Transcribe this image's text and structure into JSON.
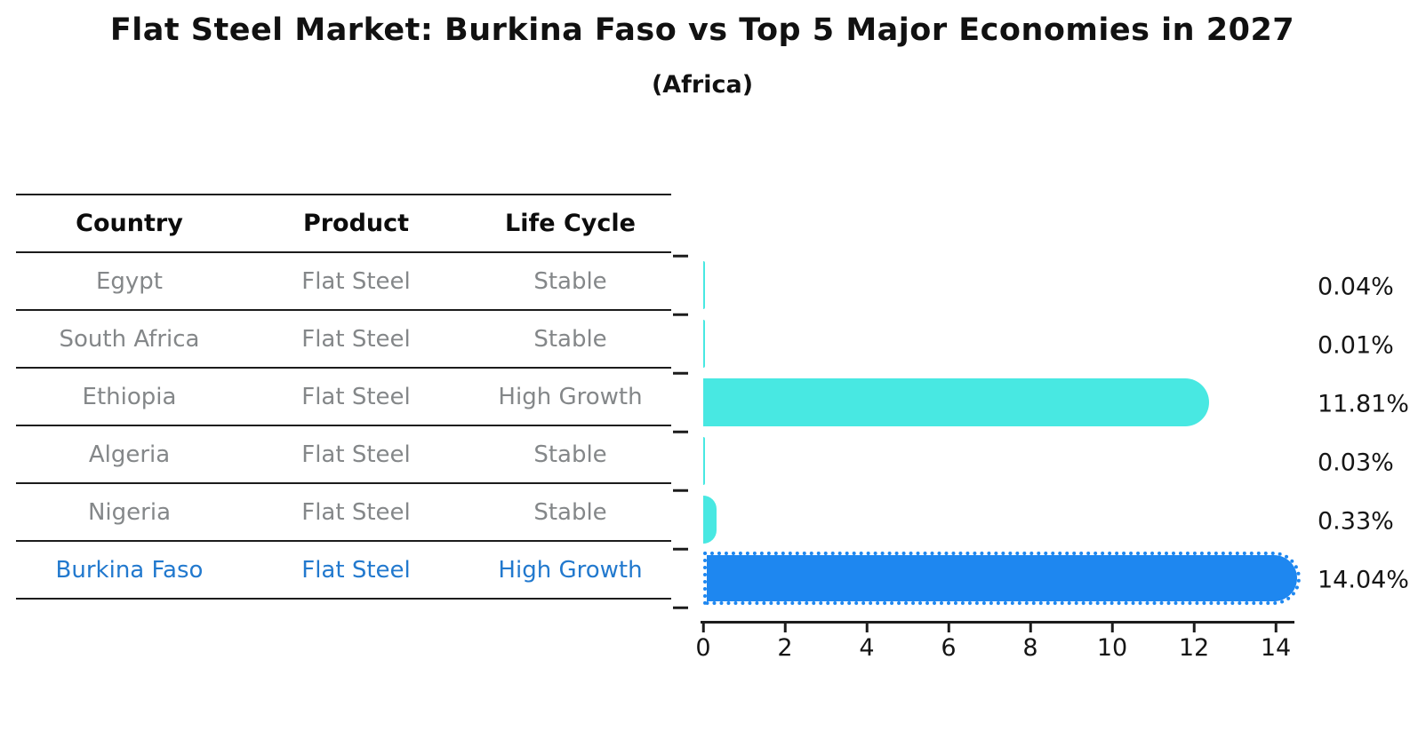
{
  "table": {
    "headers": [
      "Country",
      "Product",
      "Life Cycle"
    ],
    "rows": [
      {
        "country": "Egypt",
        "product": "Flat Steel",
        "life_cycle": "Stable",
        "highlight": false
      },
      {
        "country": "South Africa",
        "product": "Flat Steel",
        "life_cycle": "Stable",
        "highlight": false
      },
      {
        "country": "Ethiopia",
        "product": "Flat Steel",
        "life_cycle": "High Growth",
        "highlight": false
      },
      {
        "country": "Algeria",
        "product": "Flat Steel",
        "life_cycle": "Stable",
        "highlight": false
      },
      {
        "country": "Nigeria",
        "product": "Flat Steel",
        "life_cycle": "Stable",
        "highlight": false
      },
      {
        "country": "Burkina Faso",
        "product": "Flat Steel",
        "life_cycle": "High Growth",
        "highlight": true
      }
    ]
  },
  "chart_data": {
    "type": "bar",
    "orientation": "horizontal",
    "title": "Flat Steel Market: Burkina Faso vs Top 5 Major Economies in 2027",
    "subtitle": "(Africa)",
    "categories": [
      "Egypt",
      "South Africa",
      "Ethiopia",
      "Algeria",
      "Nigeria",
      "Burkina Faso"
    ],
    "values": [
      0.04,
      0.01,
      11.81,
      0.03,
      0.33,
      14.04
    ],
    "value_labels": [
      "0.04%",
      "0.01%",
      "11.81%",
      "0.03%",
      "0.33%",
      "14.04%"
    ],
    "xlabel": "",
    "ylabel": "",
    "xlim": [
      0,
      14.5
    ],
    "xticks": [
      0,
      2,
      4,
      6,
      8,
      10,
      12,
      14
    ],
    "grid": false,
    "legend": "none",
    "highlight_category": "Burkina Faso",
    "highlight_style": "dotted-edge",
    "colors": {
      "default_bar": "#48E8E2",
      "highlight_bar": "#1E87F0",
      "highlight_text": "#2279CE",
      "row_text": "#848789",
      "axis_text": "#151515"
    }
  }
}
